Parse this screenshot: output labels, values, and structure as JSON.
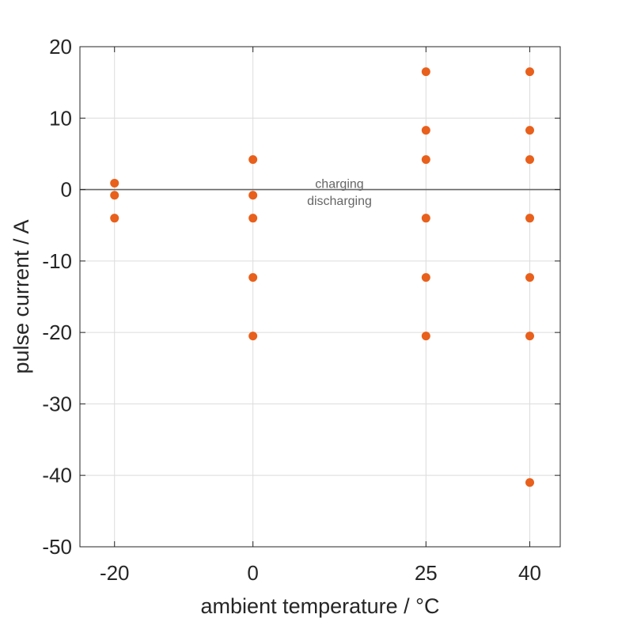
{
  "chart_data": {
    "type": "scatter",
    "xlabel": "ambient temperature / °C",
    "ylabel": "pulse current / A",
    "x_ticks": [
      -20,
      0,
      25,
      40
    ],
    "y_ticks": [
      20,
      10,
      0,
      -10,
      -20,
      -30,
      -40,
      -50
    ],
    "xlim": [
      -25,
      44.4
    ],
    "ylim": [
      -50,
      20
    ],
    "grid": true,
    "marker_color": "#E8601C",
    "reference_line": {
      "y": 0,
      "color": "#666666"
    },
    "annotations": [
      {
        "text": "charging",
        "x": 12.5,
        "y": 0.8
      },
      {
        "text": "discharging",
        "x": 12.5,
        "y": -1.6
      }
    ],
    "points": [
      {
        "x": -20,
        "y": 0.9
      },
      {
        "x": -20,
        "y": -0.8
      },
      {
        "x": -20,
        "y": -4
      },
      {
        "x": 0,
        "y": 4.2
      },
      {
        "x": 0,
        "y": -0.8
      },
      {
        "x": 0,
        "y": -4
      },
      {
        "x": 0,
        "y": -12.3
      },
      {
        "x": 0,
        "y": -20.5
      },
      {
        "x": 25,
        "y": 16.5
      },
      {
        "x": 25,
        "y": 8.3
      },
      {
        "x": 25,
        "y": 4.2
      },
      {
        "x": 25,
        "y": -4
      },
      {
        "x": 25,
        "y": -12.3
      },
      {
        "x": 25,
        "y": -20.5
      },
      {
        "x": 40,
        "y": 16.5
      },
      {
        "x": 40,
        "y": 8.3
      },
      {
        "x": 40,
        "y": 4.2
      },
      {
        "x": 40,
        "y": -4
      },
      {
        "x": 40,
        "y": -12.3
      },
      {
        "x": 40,
        "y": -20.5
      },
      {
        "x": 40,
        "y": -41
      }
    ]
  }
}
